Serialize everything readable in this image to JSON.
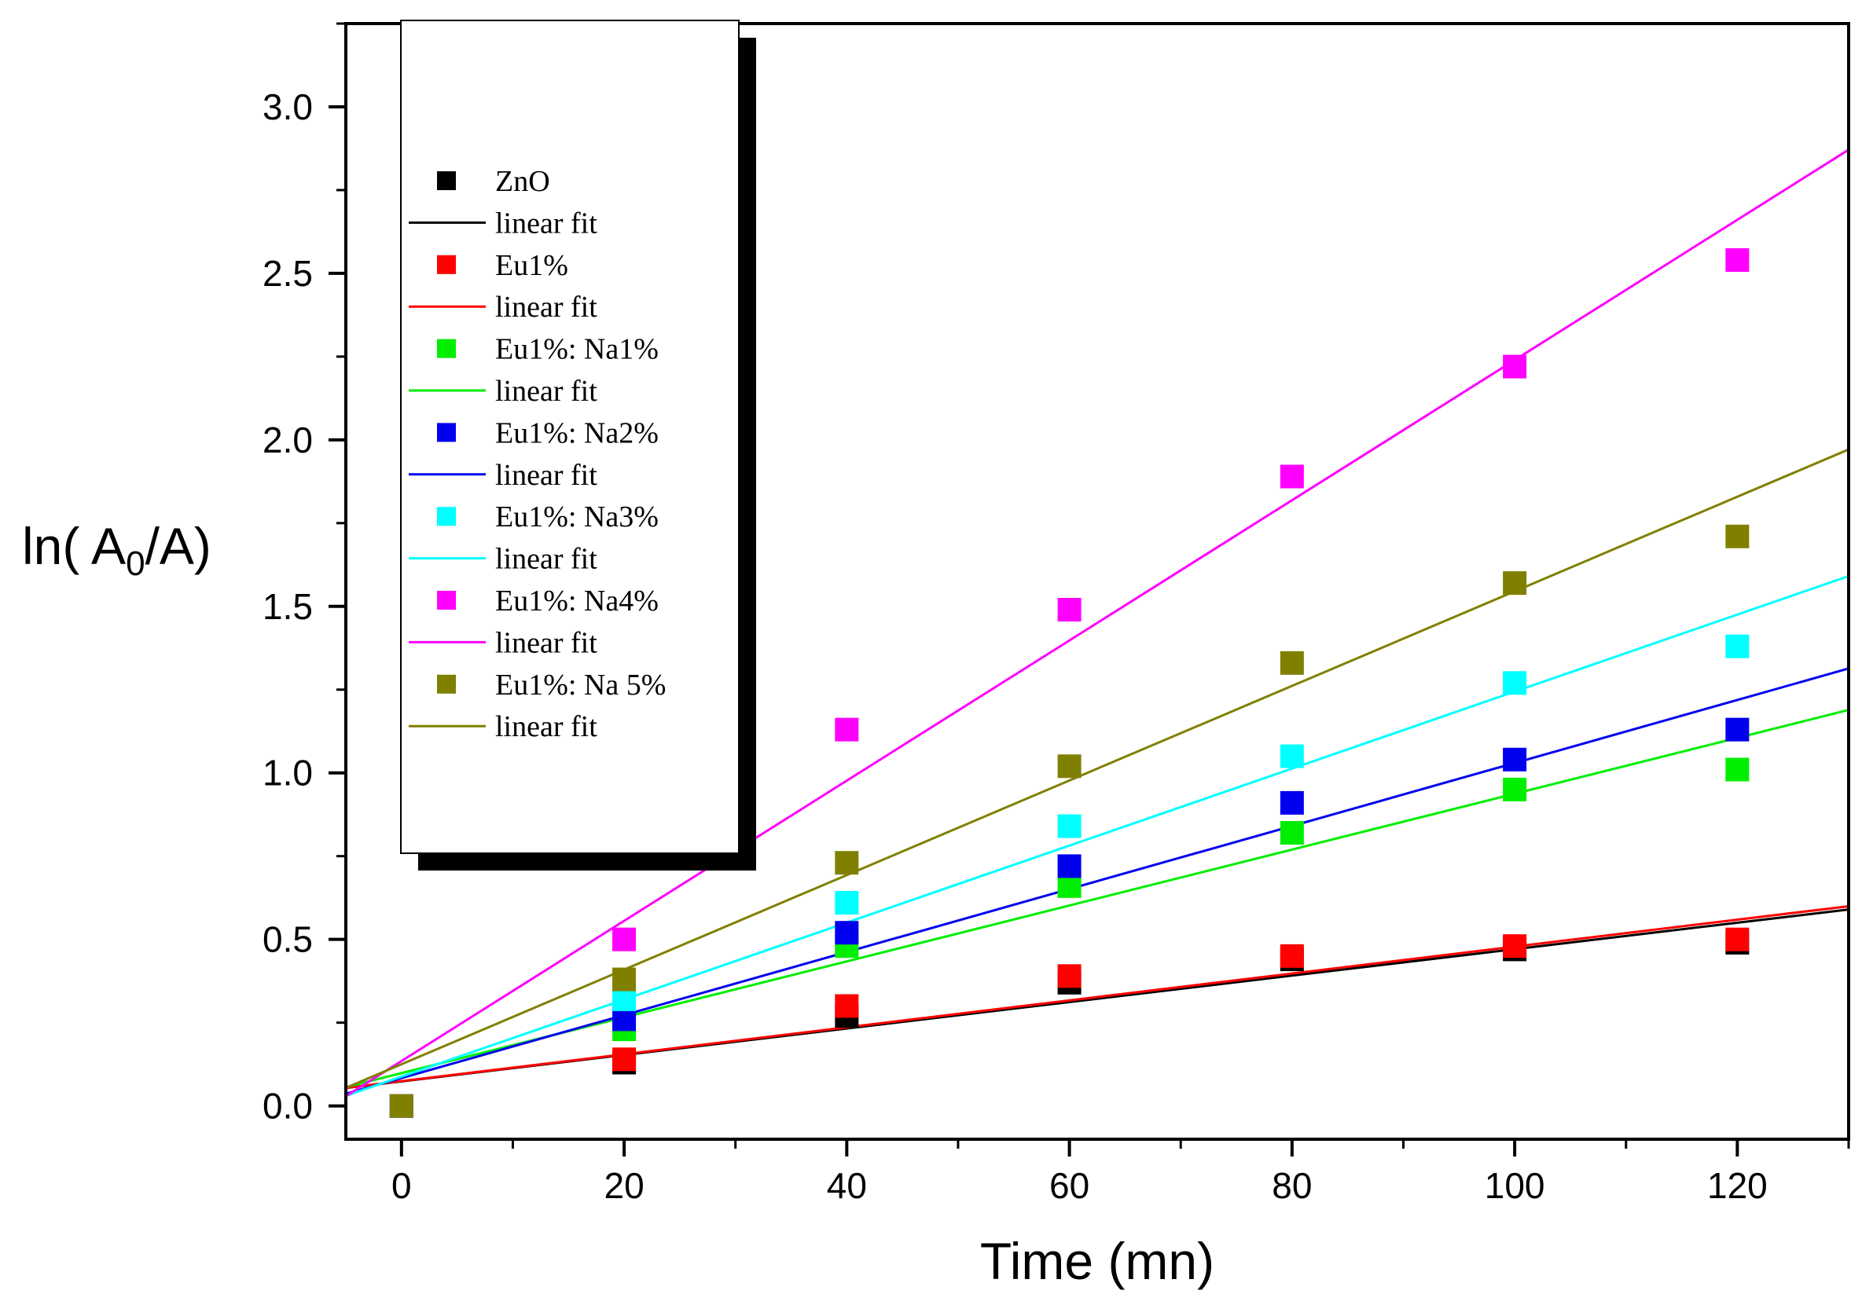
{
  "chart_data": {
    "type": "scatter",
    "xlabel": "Time (mn)",
    "ylabel_parts": [
      "ln( A",
      "0",
      "/A)"
    ],
    "xlim": [
      -5,
      130
    ],
    "ylim": [
      -0.1,
      3.25
    ],
    "x_ticks": [
      0,
      20,
      40,
      60,
      80,
      100,
      120
    ],
    "y_ticks": [
      0.0,
      0.5,
      1.0,
      1.5,
      2.0,
      2.5,
      3.0
    ],
    "x_tick_labels": [
      "0",
      "20",
      "40",
      "60",
      "80",
      "100",
      "120"
    ],
    "y_tick_labels": [
      "0.0",
      "0.5",
      "1.0",
      "1.5",
      "2.0",
      "2.5",
      "3.0"
    ],
    "grid": false,
    "legend_position": "top-left",
    "fit_label": "linear fit",
    "x": [
      0,
      20,
      40,
      60,
      80,
      100,
      120
    ],
    "series": [
      {
        "name": "ZnO",
        "color": "#000000",
        "values": [
          0.0,
          0.13,
          0.27,
          0.37,
          0.44,
          0.47,
          0.49
        ],
        "fit": {
          "slope": 0.00397,
          "intercept": 0.0737
        }
      },
      {
        "name": "Eu1%",
        "color": "#ff0000",
        "values": [
          0.0,
          0.14,
          0.3,
          0.39,
          0.45,
          0.48,
          0.5
        ],
        "fit": {
          "slope": 0.00404,
          "intercept": 0.0744
        }
      },
      {
        "name": "Eu1%: Na1%",
        "color": "#00ee00",
        "values": [
          0.0,
          0.23,
          0.48,
          0.66,
          0.82,
          0.95,
          1.01
        ],
        "fit": {
          "slope": 0.00839,
          "intercept": 0.0984
        }
      },
      {
        "name": "Eu1%: Na2%",
        "color": "#0000ee",
        "values": [
          0.0,
          0.26,
          0.52,
          0.72,
          0.91,
          1.04,
          1.13
        ],
        "fit": {
          "slope": 0.00946,
          "intercept": 0.0837
        }
      },
      {
        "name": "Eu1%: Na3%",
        "color": "#00ffff",
        "values": [
          0.0,
          0.32,
          0.61,
          0.84,
          1.05,
          1.27,
          1.38
        ],
        "fit": {
          "slope": 0.01156,
          "intercept": 0.0881
        }
      },
      {
        "name": "Eu1%: Na4%",
        "color": "#ff00ff",
        "values": [
          0.0,
          0.5,
          1.13,
          1.49,
          1.89,
          2.22,
          2.54
        ],
        "fit": {
          "slope": 0.02105,
          "intercept": 0.1347
        }
      },
      {
        "name": "Eu1%: Na 5%",
        "color": "#808000",
        "values": [
          0.0,
          0.38,
          0.73,
          1.02,
          1.33,
          1.57,
          1.71
        ],
        "fit": {
          "slope": 0.0142,
          "intercept": 0.1252
        }
      }
    ]
  }
}
